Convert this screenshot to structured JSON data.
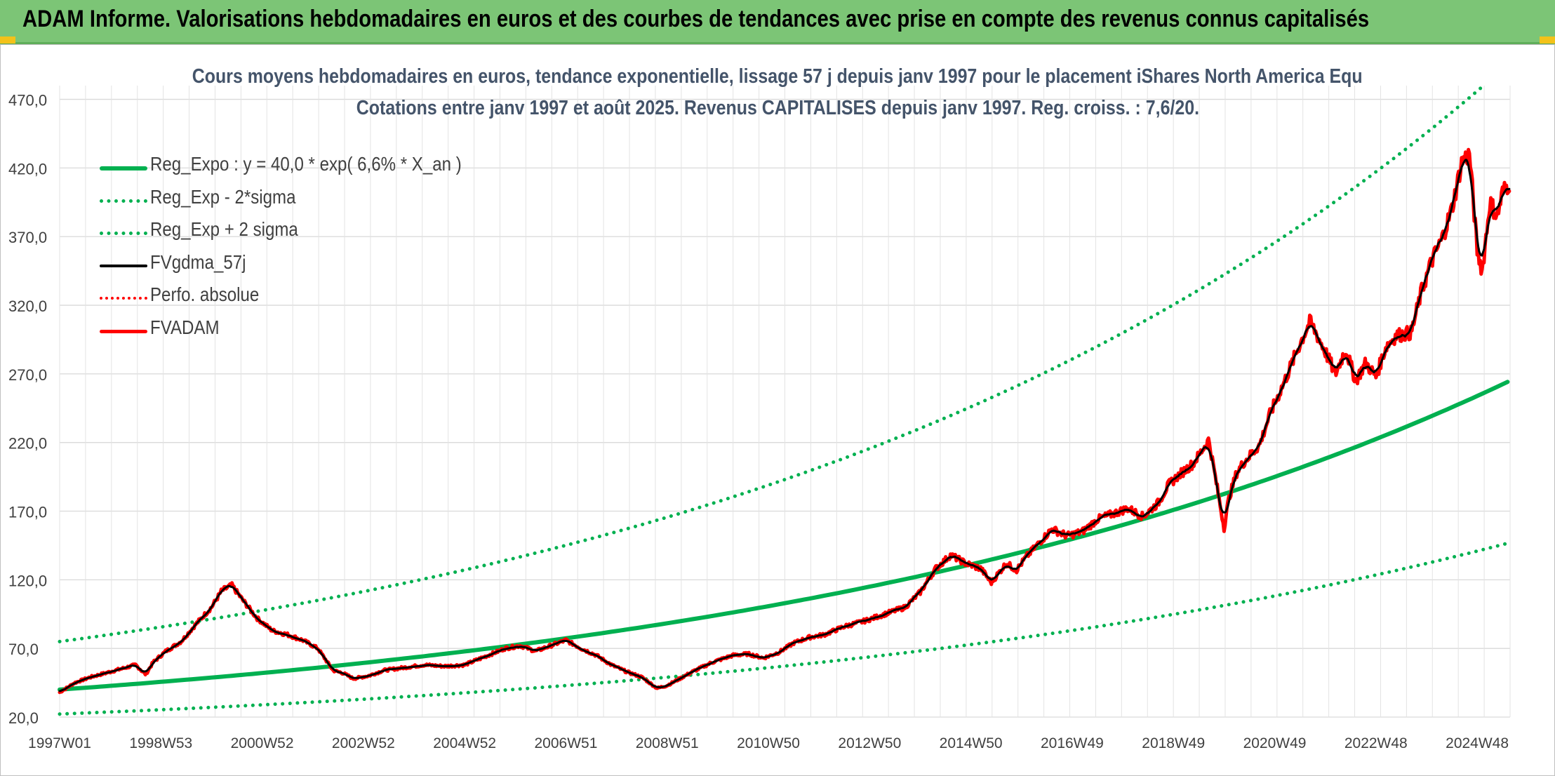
{
  "banner": {
    "title": "ADAM Informe. Valorisations hebdomadaires en euros et des courbes de tendances avec prise en compte des revenus connus capitalisés"
  },
  "chart_data": {
    "type": "line",
    "title": "Cours moyens hebdomadaires en euros, tendance exponentielle, lissage 57 j depuis janv 1997 pour le placement iShares North America Equ",
    "subtitle": "Cotations entre janv 1997 et août 2025. Revenus CAPITALISES depuis janv 1997. Reg. croiss. : 7,6/20.",
    "xlabel": "",
    "ylabel": "",
    "ylim": [
      20,
      480
    ],
    "xlim": [
      1997.0,
      2025.65
    ],
    "grid": true,
    "legend_position": "top-left",
    "yticks": [
      20,
      70,
      120,
      170,
      220,
      270,
      320,
      370,
      420,
      470
    ],
    "ytick_labels": [
      "20,0",
      "70,0",
      "120,0",
      "170,0",
      "220,0",
      "270,0",
      "320,0",
      "370,0",
      "420,0",
      "470,0"
    ],
    "xtick_labels": [
      "1997W01",
      "1998W53",
      "2000W52",
      "2002W52",
      "2004W52",
      "2006W51",
      "2008W51",
      "2010W50",
      "2012W50",
      "2014W50",
      "2016W49",
      "2018W49",
      "2020W49",
      "2022W48",
      "2024W48"
    ],
    "xtick_years": [
      1997.0,
      1999.0,
      2001.0,
      2003.0,
      2005.0,
      2007.0,
      2009.0,
      2011.0,
      2013.0,
      2015.0,
      2017.0,
      2019.0,
      2021.0,
      2023.0,
      2025.0
    ],
    "series": [
      {
        "name": "Reg_Expo : y = 40,0 * exp( 6,6% *  X_an )",
        "color": "#00b050",
        "style": "solid",
        "width": 6,
        "kind": "exp",
        "coef": 40.0,
        "rate": 0.066
      },
      {
        "name": "Reg_Exp - 2*sigma",
        "color": "#00b050",
        "style": "dotted",
        "width": 5,
        "kind": "exp",
        "coef": 22.2,
        "rate": 0.066
      },
      {
        "name": "Reg_Exp + 2 sigma",
        "color": "#00b050",
        "style": "dotted",
        "width": 5,
        "kind": "exp",
        "coef": 75.0,
        "rate": 0.066
      },
      {
        "name": "FVgdma_57j",
        "color": "#000000",
        "style": "solid",
        "width": 4,
        "kind": "smooth"
      },
      {
        "name": "Perfo. absolue",
        "color": "#ff0000",
        "style": "dotted",
        "width": 4,
        "kind": "none"
      },
      {
        "name": "FVADAM",
        "color": "#ff0000",
        "style": "solid",
        "width": 5,
        "kind": "data"
      }
    ],
    "fvadam": {
      "x": [
        1997.0,
        1997.3,
        1997.6,
        1997.9,
        1998.2,
        1998.5,
        1998.7,
        1998.85,
        1999.1,
        1999.4,
        1999.7,
        2000.0,
        2000.2,
        2000.4,
        2000.6,
        2000.9,
        2001.2,
        2001.5,
        2001.8,
        2002.1,
        2002.4,
        2002.6,
        2002.8,
        2003.1,
        2003.4,
        2003.8,
        2004.2,
        2004.6,
        2005.0,
        2005.4,
        2005.8,
        2006.1,
        2006.4,
        2006.7,
        2007.0,
        2007.3,
        2007.6,
        2007.9,
        2008.2,
        2008.5,
        2008.8,
        2009.0,
        2009.2,
        2009.5,
        2009.9,
        2010.3,
        2010.6,
        2010.9,
        2011.2,
        2011.5,
        2011.8,
        2012.1,
        2012.5,
        2012.9,
        2013.3,
        2013.7,
        2014.0,
        2014.3,
        2014.6,
        2014.9,
        2015.2,
        2015.4,
        2015.7,
        2015.9,
        2016.1,
        2016.3,
        2016.6,
        2016.9,
        2017.2,
        2017.5,
        2017.8,
        2018.1,
        2018.4,
        2018.7,
        2018.9,
        2019.1,
        2019.4,
        2019.7,
        2020.0,
        2020.1,
        2020.25,
        2020.4,
        2020.7,
        2020.9,
        2021.2,
        2021.5,
        2021.7,
        2021.95,
        2022.2,
        2022.4,
        2022.6,
        2022.8,
        2023.0,
        2023.2,
        2023.4,
        2023.7,
        2023.9,
        2024.1,
        2024.3,
        2024.5,
        2024.7,
        2024.85,
        2025.0,
        2025.1,
        2025.25,
        2025.4,
        2025.5,
        2025.65
      ],
      "y": [
        38,
        45,
        49,
        52,
        55,
        58,
        51,
        60,
        68,
        75,
        88,
        100,
        112,
        116,
        106,
        92,
        83,
        80,
        76,
        70,
        54,
        52,
        48,
        50,
        54,
        56,
        58,
        57,
        58,
        64,
        70,
        72,
        68,
        72,
        76,
        70,
        65,
        58,
        53,
        49,
        41,
        43,
        47,
        53,
        60,
        65,
        66,
        63,
        67,
        74,
        78,
        80,
        86,
        90,
        95,
        100,
        111,
        128,
        138,
        132,
        128,
        118,
        132,
        127,
        137,
        145,
        157,
        152,
        155,
        164,
        168,
        172,
        166,
        176,
        189,
        196,
        205,
        222,
        158,
        180,
        198,
        206,
        218,
        240,
        265,
        292,
        308,
        290,
        270,
        288,
        265,
        278,
        268,
        290,
        298,
        300,
        330,
        352,
        368,
        390,
        425,
        430,
        360,
        345,
        395,
        385,
        402,
        410
      ]
    }
  }
}
